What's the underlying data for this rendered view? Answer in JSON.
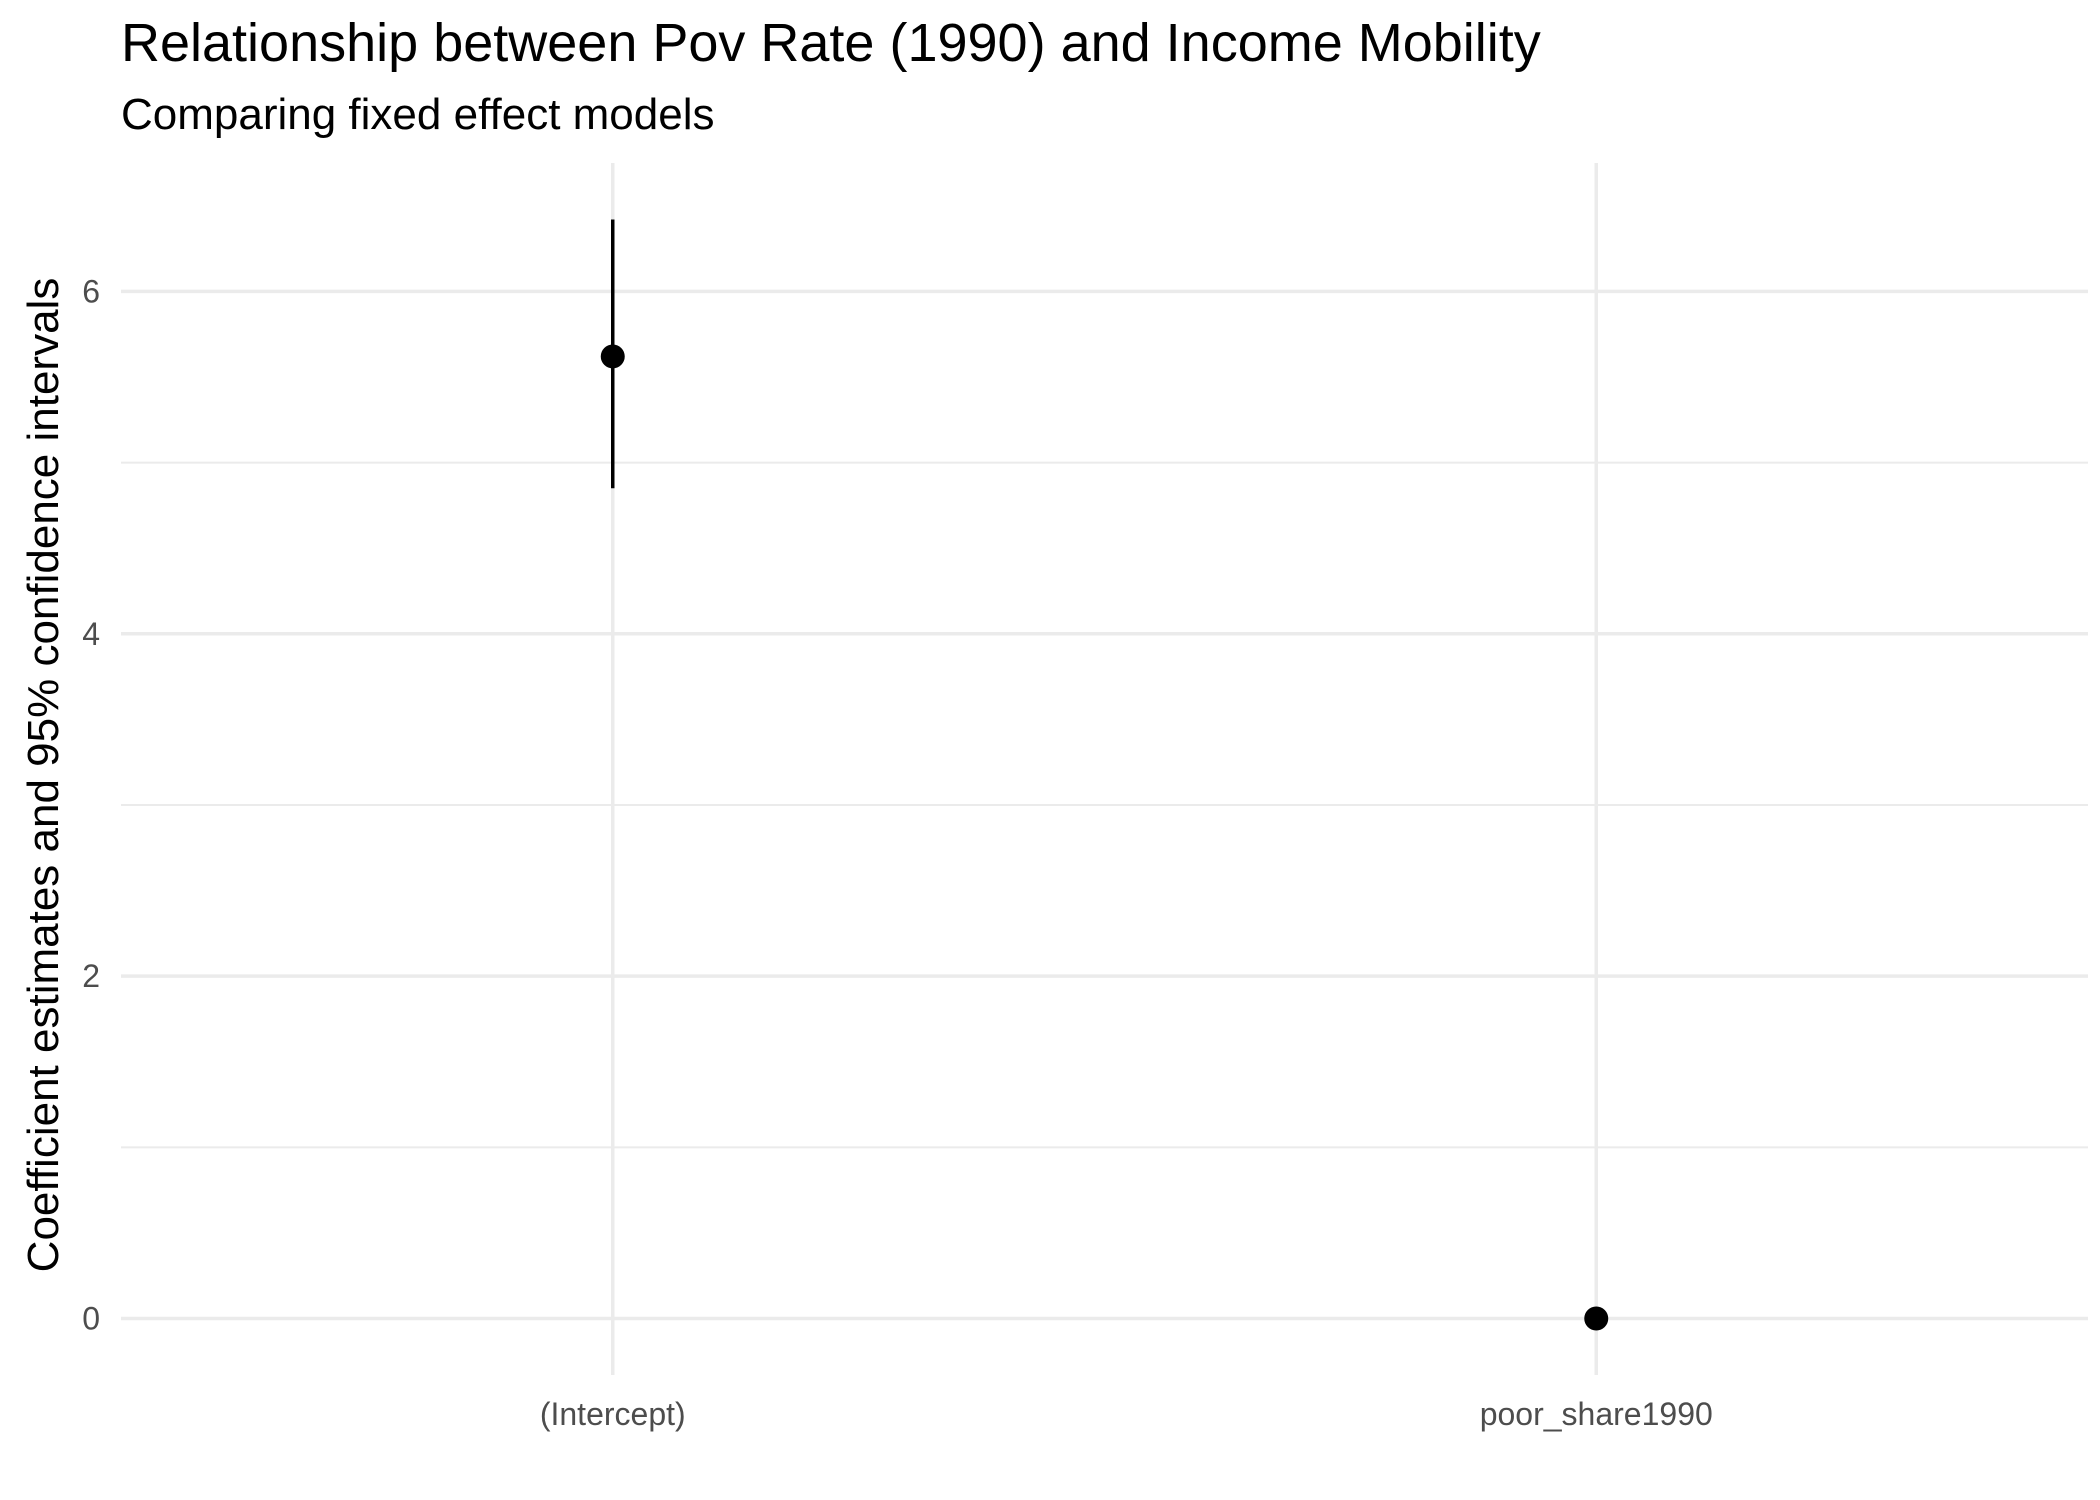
{
  "chart_data": {
    "type": "scatter",
    "title": "Relationship between Pov Rate (1990) and Income Mobility",
    "subtitle": "Comparing fixed effect models",
    "xlabel": "",
    "ylabel": "Coefficient estimates and 95% confidence intervals",
    "categories": [
      "(Intercept)",
      "poor_share1990"
    ],
    "estimates": [
      5.62,
      0.0
    ],
    "ci_low": [
      4.85,
      -0.01
    ],
    "ci_high": [
      6.42,
      0.01
    ],
    "y_ticks": [
      0,
      2,
      4,
      6
    ],
    "ylim": [
      -0.33,
      6.75
    ],
    "grid": true,
    "colors": {
      "grid": "#ebebeb",
      "point": "#000000",
      "tick_text": "#4d4d4d"
    }
  }
}
